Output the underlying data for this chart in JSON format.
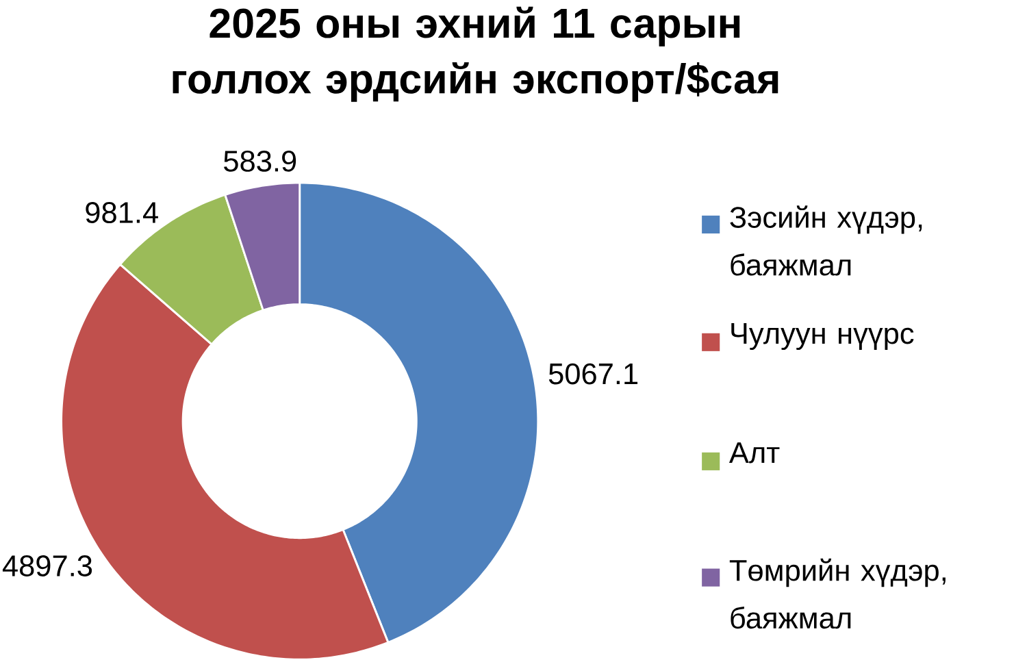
{
  "chart_data": {
    "type": "donut",
    "title": "2025 оны эхний 11 сарын голлох эрдсийн экспорт/$сая",
    "categories": [
      "Зэсийн хүдэр, баяжмал",
      "Чулуун нүүрс",
      "Алт",
      "Төмрийн хүдэр, баяжмал"
    ],
    "values": [
      5067.1,
      4897.3,
      981.4,
      583.9
    ],
    "colors": [
      "#4f81bd",
      "#c0504d",
      "#9bbb59",
      "#8064a2"
    ],
    "data_labels": true,
    "legend": "right"
  }
}
